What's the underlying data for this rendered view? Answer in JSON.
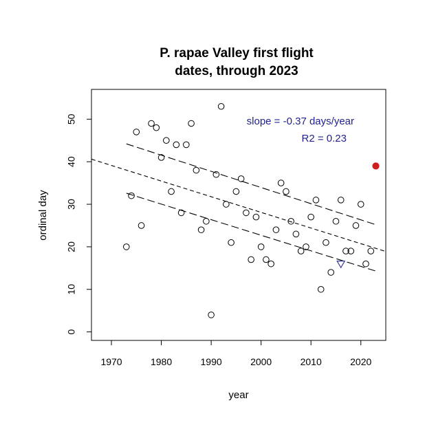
{
  "chart_data": {
    "type": "scatter",
    "title_lines": [
      "P. rapae Valley first flight",
      "dates, through 2023"
    ],
    "xlabel": "year",
    "ylabel": "ordinal day",
    "xlim": [
      1966,
      2025
    ],
    "ylim": [
      -2,
      57
    ],
    "x_ticks": [
      1970,
      1980,
      1990,
      2000,
      2010,
      2020
    ],
    "y_ticks": [
      0,
      10,
      20,
      30,
      40,
      50
    ],
    "points": [
      {
        "x": 1973,
        "y": 20
      },
      {
        "x": 1974,
        "y": 32
      },
      {
        "x": 1975,
        "y": 47
      },
      {
        "x": 1976,
        "y": 25
      },
      {
        "x": 1978,
        "y": 49
      },
      {
        "x": 1979,
        "y": 48
      },
      {
        "x": 1980,
        "y": 41
      },
      {
        "x": 1981,
        "y": 45
      },
      {
        "x": 1982,
        "y": 33
      },
      {
        "x": 1983,
        "y": 44
      },
      {
        "x": 1984,
        "y": 28
      },
      {
        "x": 1985,
        "y": 44
      },
      {
        "x": 1986,
        "y": 49
      },
      {
        "x": 1987,
        "y": 38
      },
      {
        "x": 1988,
        "y": 24
      },
      {
        "x": 1989,
        "y": 26
      },
      {
        "x": 1990,
        "y": 4
      },
      {
        "x": 1991,
        "y": 37
      },
      {
        "x": 1992,
        "y": 53
      },
      {
        "x": 1993,
        "y": 30
      },
      {
        "x": 1994,
        "y": 21
      },
      {
        "x": 1995,
        "y": 33
      },
      {
        "x": 1996,
        "y": 36
      },
      {
        "x": 1997,
        "y": 28
      },
      {
        "x": 1998,
        "y": 17
      },
      {
        "x": 1999,
        "y": 27
      },
      {
        "x": 2000,
        "y": 20
      },
      {
        "x": 2001,
        "y": 17
      },
      {
        "x": 2002,
        "y": 16
      },
      {
        "x": 2003,
        "y": 24
      },
      {
        "x": 2004,
        "y": 35
      },
      {
        "x": 2005,
        "y": 33
      },
      {
        "x": 2006,
        "y": 26
      },
      {
        "x": 2007,
        "y": 23
      },
      {
        "x": 2008,
        "y": 19
      },
      {
        "x": 2009,
        "y": 20
      },
      {
        "x": 2010,
        "y": 27
      },
      {
        "x": 2011,
        "y": 31
      },
      {
        "x": 2012,
        "y": 10
      },
      {
        "x": 2013,
        "y": 21
      },
      {
        "x": 2014,
        "y": 14
      },
      {
        "x": 2015,
        "y": 26
      },
      {
        "x": 2016,
        "y": 31
      },
      {
        "x": 2017,
        "y": 19
      },
      {
        "x": 2018,
        "y": 19
      },
      {
        "x": 2019,
        "y": 25
      },
      {
        "x": 2020,
        "y": 30
      },
      {
        "x": 2021,
        "y": 16
      },
      {
        "x": 2022,
        "y": 19
      }
    ],
    "highlight_point": {
      "x": 2023,
      "y": 39,
      "color": "#cc1f1f",
      "shape": "filled-circle"
    },
    "triangle_point": {
      "x": 2016,
      "y": 16,
      "color": "#3a3a9a",
      "shape": "down-triangle"
    },
    "fit_line": {
      "x": [
        1966,
        2025
      ],
      "y": [
        40.6,
        18.9
      ],
      "style": "short-dash"
    },
    "upper_band": {
      "x": [
        1973,
        2023
      ],
      "y": [
        44.2,
        25.2
      ],
      "style": "long-dash"
    },
    "lower_band": {
      "x": [
        1973,
        2023
      ],
      "y": [
        32.6,
        14.3
      ],
      "style": "long-dash"
    },
    "annotations": {
      "slope": "slope = -0.37 days/year",
      "r2": "R2 = 0.23",
      "color": "#1f1f8f"
    },
    "grid": false
  }
}
